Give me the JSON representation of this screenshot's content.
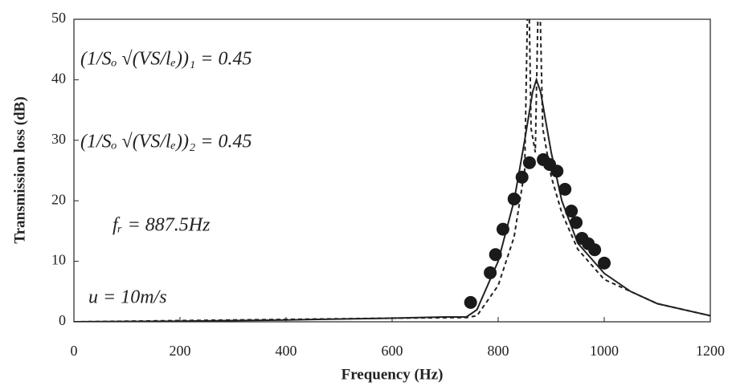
{
  "chart_data": {
    "type": "line",
    "xlabel": "Frequency (Hz)",
    "ylabel": "Transmission loss (dB)",
    "xlim": [
      0,
      1200
    ],
    "ylim": [
      0,
      50
    ],
    "xticks": [
      0,
      200,
      400,
      600,
      800,
      1000,
      1200
    ],
    "yticks": [
      0,
      10,
      20,
      30,
      40,
      50
    ],
    "series": [
      {
        "color": "#222222",
        "style": "solid",
        "x": [
          0,
          200,
          400,
          600,
          700,
          740,
          760,
          780,
          800,
          830,
          850,
          865,
          872,
          880,
          900,
          920,
          950,
          1000,
          1050,
          1100,
          1150,
          1200
        ],
        "values": [
          0,
          0.1,
          0.3,
          0.6,
          0.8,
          0.8,
          2,
          6,
          10,
          20,
          30,
          38,
          40,
          38,
          28,
          20,
          13,
          8,
          5,
          3,
          2,
          1
        ]
      },
      {
        "color": "#222222",
        "style": "dashed",
        "x": [
          0,
          600,
          740,
          760,
          800,
          830,
          850,
          857,
          862,
          870,
          877,
          884,
          900,
          920,
          950,
          1000,
          1100,
          1200
        ],
        "values": [
          0,
          0.6,
          0.7,
          1,
          6,
          14,
          25,
          60,
          32,
          28,
          60,
          32,
          24,
          18,
          12,
          7,
          3,
          1
        ]
      }
    ],
    "scatter": {
      "color": "#1a1a1a",
      "x": [
        748,
        785,
        795,
        809,
        830,
        845,
        859,
        885,
        897,
        911,
        926,
        938,
        947,
        958,
        970,
        982,
        1000
      ],
      "values": [
        3.2,
        8.1,
        11.1,
        15.3,
        20.3,
        23.9,
        26.3,
        26.8,
        26,
        24.9,
        21.9,
        18.3,
        16.4,
        13.8,
        12.9,
        11.9,
        9.7
      ]
    },
    "annotations": [
      "(1/Sₒ √(VS/lₑ))₁ = 0.45",
      "(1/Sₒ √(VS/lₑ))₂ = 0.45",
      "fᵣ = 887.5Hz",
      "u = 10m/s"
    ]
  }
}
